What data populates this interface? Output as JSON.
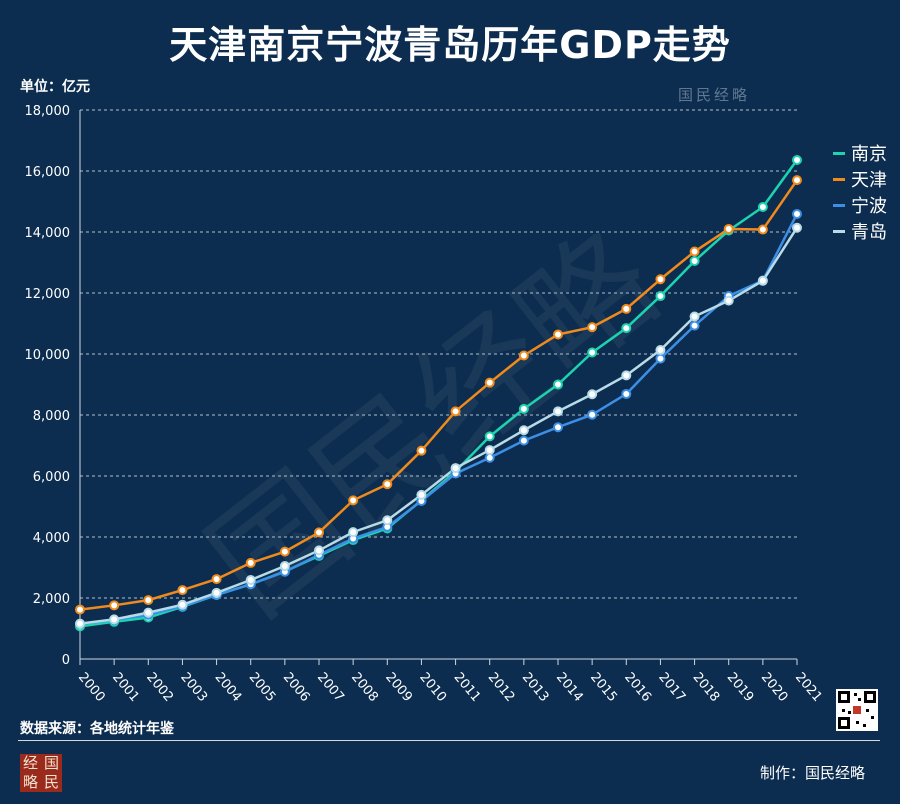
{
  "page": {
    "title": "天津南京宁波青岛历年GDP走势",
    "unit_label": "单位：亿元",
    "source_label": "数据来源：各地统计年鉴",
    "maker_label": "制作：国民经略",
    "seal_text": "经国略民",
    "watermark": "国民经略",
    "colors": {
      "background": "#0c2d4f",
      "grid": "#cfd8e3"
    }
  },
  "chart_data": {
    "type": "line",
    "title": "天津南京宁波青岛历年GDP走势",
    "ylabel": "单位：亿元",
    "xlabel": "",
    "ylim": [
      0,
      18000
    ],
    "yticks": [
      0,
      2000,
      4000,
      6000,
      8000,
      10000,
      12000,
      14000,
      16000,
      18000
    ],
    "ytick_labels": [
      "0",
      "2,000",
      "4,000",
      "6,000",
      "8,000",
      "10,000",
      "12,000",
      "14,000",
      "16,000",
      "18,000"
    ],
    "grid": true,
    "legend_position": "right",
    "categories": [
      "2000",
      "2001",
      "2002",
      "2003",
      "2004",
      "2005",
      "2006",
      "2007",
      "2008",
      "2009",
      "2010",
      "2011",
      "2012",
      "2013",
      "2014",
      "2015",
      "2016",
      "2017",
      "2018",
      "2019",
      "2020",
      "2021"
    ],
    "series": [
      {
        "name": "南京",
        "color": "#1dd3b0",
        "values": [
          1070,
          1220,
          1360,
          1710,
          2100,
          2450,
          2870,
          3380,
          3900,
          4280,
          5200,
          6150,
          7300,
          8200,
          9000,
          10050,
          10850,
          11900,
          13050,
          14050,
          14820,
          16360
        ]
      },
      {
        "name": "天津",
        "color": "#f08a1c",
        "values": [
          1620,
          1760,
          1930,
          2260,
          2620,
          3150,
          3520,
          4150,
          5200,
          5730,
          6830,
          8120,
          9060,
          9950,
          10640,
          10880,
          11480,
          12450,
          13360,
          14100,
          14080,
          15700
        ]
      },
      {
        "name": "宁波",
        "color": "#3d8fe6",
        "values": [
          1150,
          1280,
          1450,
          1730,
          2100,
          2450,
          2860,
          3420,
          3950,
          4330,
          5180,
          6080,
          6600,
          7160,
          7600,
          8010,
          8690,
          9850,
          10930,
          11900,
          12410,
          14590
        ]
      },
      {
        "name": "青岛",
        "color": "#b7dbe7",
        "values": [
          1160,
          1300,
          1520,
          1780,
          2170,
          2590,
          3050,
          3560,
          4160,
          4550,
          5380,
          6260,
          6850,
          7500,
          8120,
          8680,
          9300,
          10130,
          11230,
          11750,
          12400,
          14140
        ]
      }
    ]
  }
}
